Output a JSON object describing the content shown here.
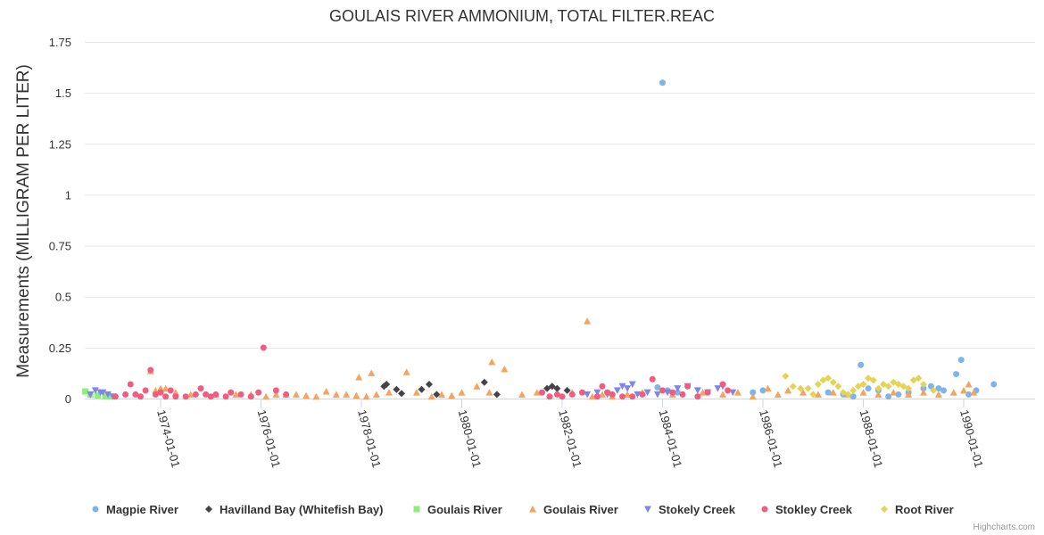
{
  "chart_data": {
    "type": "scatter",
    "title": "GOULAIS RIVER AMMONIUM, TOTAL FILTER.REAC",
    "xlabel": "",
    "ylabel": "Measurements (MILLIGRAM PER LITER)",
    "ylim": [
      0,
      1.75
    ],
    "xlim": [
      1972.3,
      1990.75
    ],
    "y_ticks": [
      "0",
      "0.25",
      "0.5",
      "0.75",
      "1",
      "1.25",
      "1.5",
      "1.75"
    ],
    "y_tick_values": [
      0,
      0.25,
      0.5,
      0.75,
      1,
      1.25,
      1.5,
      1.75
    ],
    "x_ticks": [
      "1974-01-01",
      "1976-01-01",
      "1978-01-01",
      "1980-01-01",
      "1982-01-01",
      "1984-01-01",
      "1986-01-01",
      "1988-01-01",
      "1990-01-01"
    ],
    "x_tick_values": [
      1974,
      1976,
      1978,
      1980,
      1982,
      1984,
      1986,
      1988,
      1990
    ],
    "grid": true,
    "legend_position": "bottom",
    "credits": "Highcharts.com",
    "series": [
      {
        "name": "Magpie River",
        "marker": "circle",
        "color": "#7cb5ec",
        "points": [
          [
            1983.9,
            0.055
          ],
          [
            1984.0,
            1.55
          ],
          [
            1984.1,
            0.04
          ],
          [
            1984.3,
            0.03
          ],
          [
            1985.8,
            0.03
          ],
          [
            1986.0,
            0.04
          ],
          [
            1987.3,
            0.03
          ],
          [
            1987.6,
            0.02
          ],
          [
            1987.8,
            0.01
          ],
          [
            1987.95,
            0.165
          ],
          [
            1988.1,
            0.05
          ],
          [
            1988.3,
            0.04
          ],
          [
            1988.5,
            0.01
          ],
          [
            1988.7,
            0.02
          ],
          [
            1988.9,
            0.03
          ],
          [
            1989.2,
            0.05
          ],
          [
            1989.35,
            0.06
          ],
          [
            1989.5,
            0.05
          ],
          [
            1989.6,
            0.04
          ],
          [
            1989.85,
            0.12
          ],
          [
            1989.95,
            0.19
          ],
          [
            1990.1,
            0.02
          ],
          [
            1990.25,
            0.04
          ],
          [
            1990.6,
            0.07
          ]
        ]
      },
      {
        "name": "Havilland Bay (Whitefish Bay)",
        "marker": "diamond",
        "color": "#434348",
        "points": [
          [
            1978.45,
            0.06
          ],
          [
            1978.5,
            0.07
          ],
          [
            1978.7,
            0.045
          ],
          [
            1978.8,
            0.025
          ],
          [
            1979.2,
            0.045
          ],
          [
            1979.35,
            0.07
          ],
          [
            1979.5,
            0.02
          ],
          [
            1980.45,
            0.08
          ],
          [
            1980.7,
            0.02
          ],
          [
            1981.7,
            0.05
          ],
          [
            1981.8,
            0.06
          ],
          [
            1981.9,
            0.05
          ],
          [
            1982.1,
            0.04
          ]
        ]
      },
      {
        "name": "Goulais River",
        "marker": "square",
        "color": "#90ed7d",
        "points": [
          [
            1972.5,
            0.035
          ],
          [
            1972.6,
            0.02
          ],
          [
            1972.75,
            0.015
          ],
          [
            1972.9,
            0.01
          ],
          [
            1973.0,
            0.01
          ]
        ]
      },
      {
        "name": "Goulais River",
        "marker": "triangle",
        "color": "#f7a35c",
        "points": [
          [
            1973.8,
            0.135
          ],
          [
            1973.9,
            0.04
          ],
          [
            1974.0,
            0.05
          ],
          [
            1974.1,
            0.05
          ],
          [
            1974.3,
            0.03
          ],
          [
            1974.6,
            0.02
          ],
          [
            1975.1,
            0.02
          ],
          [
            1975.5,
            0.02
          ],
          [
            1975.8,
            0.02
          ],
          [
            1976.1,
            0.01
          ],
          [
            1976.3,
            0.02
          ],
          [
            1976.5,
            0.02
          ],
          [
            1976.7,
            0.02
          ],
          [
            1976.9,
            0.015
          ],
          [
            1977.1,
            0.01
          ],
          [
            1977.3,
            0.035
          ],
          [
            1977.5,
            0.02
          ],
          [
            1977.7,
            0.02
          ],
          [
            1977.9,
            0.015
          ],
          [
            1978.1,
            0.01
          ],
          [
            1978.3,
            0.02
          ],
          [
            1977.95,
            0.105
          ],
          [
            1978.2,
            0.125
          ],
          [
            1978.55,
            0.03
          ],
          [
            1978.9,
            0.13
          ],
          [
            1979.1,
            0.03
          ],
          [
            1979.4,
            0.01
          ],
          [
            1979.6,
            0.02
          ],
          [
            1979.8,
            0.015
          ],
          [
            1980.0,
            0.03
          ],
          [
            1980.3,
            0.06
          ],
          [
            1980.55,
            0.03
          ],
          [
            1980.6,
            0.18
          ],
          [
            1980.85,
            0.145
          ],
          [
            1981.2,
            0.02
          ],
          [
            1981.5,
            0.03
          ],
          [
            1982.2,
            0.03
          ],
          [
            1982.5,
            0.38
          ],
          [
            1982.6,
            0.01
          ],
          [
            1982.8,
            0.02
          ],
          [
            1983.0,
            0.01
          ],
          [
            1983.3,
            0.02
          ],
          [
            1983.6,
            0.03
          ],
          [
            1984.2,
            0.02
          ],
          [
            1984.8,
            0.03
          ],
          [
            1985.2,
            0.02
          ],
          [
            1985.5,
            0.03
          ],
          [
            1985.8,
            0.01
          ],
          [
            1986.1,
            0.05
          ],
          [
            1986.3,
            0.02
          ],
          [
            1986.5,
            0.04
          ],
          [
            1986.8,
            0.03
          ],
          [
            1987.1,
            0.02
          ],
          [
            1987.4,
            0.03
          ],
          [
            1987.7,
            0.02
          ],
          [
            1988.0,
            0.03
          ],
          [
            1988.3,
            0.02
          ],
          [
            1988.6,
            0.03
          ],
          [
            1988.9,
            0.02
          ],
          [
            1989.2,
            0.03
          ],
          [
            1989.5,
            0.02
          ],
          [
            1989.8,
            0.03
          ],
          [
            1990.0,
            0.04
          ],
          [
            1990.1,
            0.07
          ],
          [
            1990.2,
            0.03
          ]
        ]
      },
      {
        "name": "Stokely Creek",
        "marker": "triangle-down",
        "color": "#8085e9",
        "points": [
          [
            1972.6,
            0.02
          ],
          [
            1972.7,
            0.04
          ],
          [
            1972.8,
            0.03
          ],
          [
            1972.85,
            0.03
          ],
          [
            1972.95,
            0.02
          ],
          [
            1973.05,
            0.01
          ],
          [
            1982.5,
            0.02
          ],
          [
            1982.7,
            0.03
          ],
          [
            1982.9,
            0.02
          ],
          [
            1983.1,
            0.04
          ],
          [
            1983.2,
            0.06
          ],
          [
            1983.3,
            0.05
          ],
          [
            1983.4,
            0.07
          ],
          [
            1983.5,
            0.02
          ],
          [
            1983.7,
            0.03
          ],
          [
            1983.9,
            0.02
          ],
          [
            1984.1,
            0.03
          ],
          [
            1984.3,
            0.05
          ],
          [
            1984.5,
            0.06
          ],
          [
            1984.7,
            0.04
          ],
          [
            1984.9,
            0.03
          ],
          [
            1985.1,
            0.05
          ],
          [
            1985.2,
            0.06
          ],
          [
            1985.4,
            0.03
          ]
        ]
      },
      {
        "name": "Stokley Creek",
        "marker": "circle",
        "color": "#f15c80",
        "points": [
          [
            1973.1,
            0.01
          ],
          [
            1973.3,
            0.02
          ],
          [
            1973.4,
            0.07
          ],
          [
            1973.5,
            0.02
          ],
          [
            1973.6,
            0.01
          ],
          [
            1973.7,
            0.04
          ],
          [
            1973.8,
            0.14
          ],
          [
            1973.9,
            0.02
          ],
          [
            1974.0,
            0.03
          ],
          [
            1974.1,
            0.01
          ],
          [
            1974.2,
            0.04
          ],
          [
            1974.3,
            0.01
          ],
          [
            1974.5,
            0.01
          ],
          [
            1974.7,
            0.02
          ],
          [
            1974.8,
            0.05
          ],
          [
            1974.9,
            0.02
          ],
          [
            1975.0,
            0.01
          ],
          [
            1975.1,
            0.02
          ],
          [
            1975.3,
            0.01
          ],
          [
            1975.4,
            0.03
          ],
          [
            1975.6,
            0.02
          ],
          [
            1975.8,
            0.01
          ],
          [
            1975.95,
            0.03
          ],
          [
            1976.05,
            0.25
          ],
          [
            1976.3,
            0.04
          ],
          [
            1976.5,
            0.02
          ],
          [
            1981.6,
            0.03
          ],
          [
            1981.75,
            0.01
          ],
          [
            1981.9,
            0.02
          ],
          [
            1982.0,
            0.01
          ],
          [
            1982.2,
            0.02
          ],
          [
            1982.4,
            0.03
          ],
          [
            1982.7,
            0.01
          ],
          [
            1982.8,
            0.06
          ],
          [
            1982.9,
            0.03
          ],
          [
            1983.0,
            0.02
          ],
          [
            1983.2,
            0.01
          ],
          [
            1983.4,
            0.01
          ],
          [
            1983.6,
            0.02
          ],
          [
            1983.8,
            0.095
          ],
          [
            1984.0,
            0.04
          ],
          [
            1984.2,
            0.03
          ],
          [
            1984.4,
            0.02
          ],
          [
            1984.5,
            0.06
          ],
          [
            1984.7,
            0.01
          ],
          [
            1984.9,
            0.03
          ],
          [
            1985.2,
            0.07
          ],
          [
            1985.3,
            0.04
          ]
        ]
      },
      {
        "name": "Root River",
        "marker": "diamond",
        "color": "#e4d354",
        "points": [
          [
            1986.45,
            0.11
          ],
          [
            1986.6,
            0.06
          ],
          [
            1986.75,
            0.05
          ],
          [
            1986.9,
            0.05
          ],
          [
            1987.0,
            0.02
          ],
          [
            1987.1,
            0.07
          ],
          [
            1987.2,
            0.09
          ],
          [
            1987.3,
            0.1
          ],
          [
            1987.4,
            0.08
          ],
          [
            1987.5,
            0.06
          ],
          [
            1987.6,
            0.03
          ],
          [
            1987.7,
            0.02
          ],
          [
            1987.8,
            0.04
          ],
          [
            1987.9,
            0.06
          ],
          [
            1988.0,
            0.07
          ],
          [
            1988.1,
            0.1
          ],
          [
            1988.2,
            0.09
          ],
          [
            1988.3,
            0.05
          ],
          [
            1988.4,
            0.07
          ],
          [
            1988.5,
            0.06
          ],
          [
            1988.6,
            0.08
          ],
          [
            1988.7,
            0.07
          ],
          [
            1988.8,
            0.06
          ],
          [
            1988.9,
            0.05
          ],
          [
            1989.0,
            0.09
          ],
          [
            1989.1,
            0.1
          ],
          [
            1989.2,
            0.07
          ],
          [
            1989.4,
            0.04
          ]
        ]
      }
    ]
  }
}
